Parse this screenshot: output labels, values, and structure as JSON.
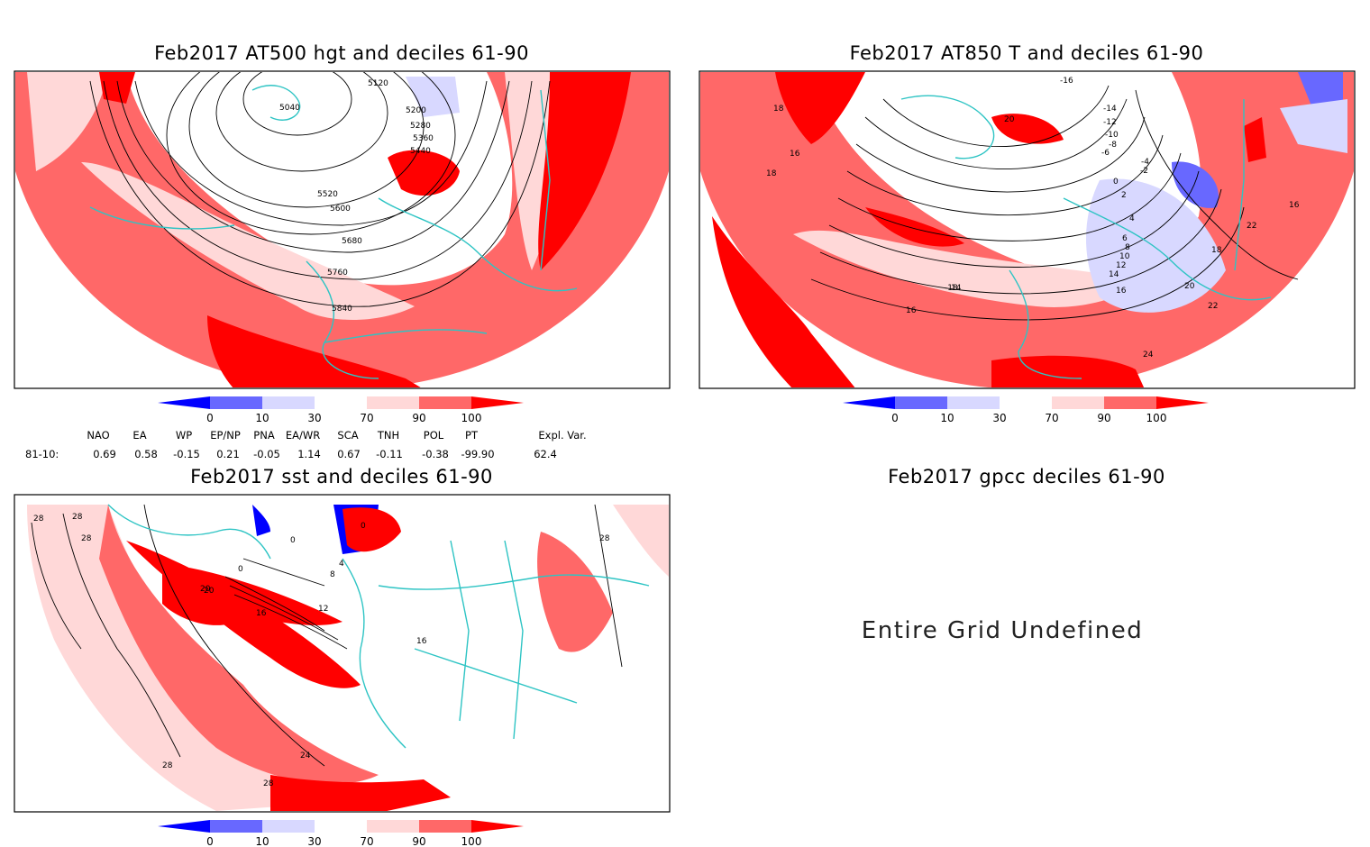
{
  "panels": [
    {
      "title": "Feb2017 AT500 hgt and deciles 61-90",
      "contour_labels": [
        "5040",
        "5120",
        "5200",
        "5280",
        "5360",
        "5440",
        "5520",
        "5600",
        "5680",
        "5760",
        "5840"
      ]
    },
    {
      "title": "Feb2017 AT850 T and deciles 61-90",
      "contour_labels": [
        "18",
        "16",
        "18",
        "-16",
        "-14",
        "-12",
        "-10",
        "-8",
        "-6",
        "-4",
        "-2",
        "0",
        "2",
        "4",
        "6",
        "8",
        "10",
        "12",
        "14",
        "16",
        "18",
        "20",
        "22",
        "24",
        "22",
        "20",
        "-18",
        "16",
        "14",
        "16"
      ]
    },
    {
      "title": "Feb2017 sst and deciles 61-90",
      "contour_labels": [
        "28",
        "28",
        "28",
        "20",
        "0",
        "0",
        "4",
        "8",
        "12",
        "16",
        "20",
        "24",
        "28",
        "28",
        "28",
        "16",
        "0"
      ]
    },
    {
      "title": "Feb2017 gpcc deciles 61-90",
      "message": "Entire Grid Undefined"
    }
  ],
  "colorbar": {
    "labels": [
      "0",
      "10",
      "30",
      "70",
      "90",
      "100"
    ],
    "colors": [
      "#0000ff",
      "#6868ff",
      "#d8d8ff",
      "#ffffff",
      "#ffd8d8",
      "#ff6868",
      "#ff0000"
    ]
  },
  "indices": {
    "headers": [
      "NAO",
      "EA",
      "WP",
      "EP/NP",
      "PNA",
      "EA/WR",
      "SCA",
      "TNH",
      "POL",
      "PT",
      "Expl. Var."
    ],
    "row_label": "81-10:",
    "values": [
      "0.69",
      "0.58",
      "-0.15",
      "0.21",
      "-0.05",
      "1.14",
      "0.67",
      "-0.11",
      "-0.38",
      "-99.90",
      "62.4"
    ]
  },
  "colors": {
    "coast": "#2ec4c4",
    "contour": "#000000",
    "deep_red": "#ff0000",
    "mid_red": "#ff6868",
    "light_red": "#ffd8d8",
    "light_blue": "#d8d8ff",
    "mid_blue": "#6868ff",
    "deep_blue": "#0000ff"
  }
}
